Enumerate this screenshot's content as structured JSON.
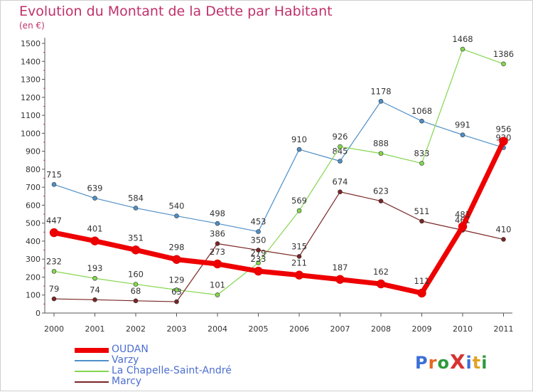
{
  "title": "Evolution du Montant de la Dette par Habitant",
  "unit": "(en €)",
  "logo": {
    "text": "ProXiti",
    "colors": [
      "#3b6fd8",
      "#e26a1f",
      "#2e9a3c",
      "#d8322f",
      "#3b6fd8",
      "#e2a21f",
      "#2e9a3c"
    ]
  },
  "chart_data": {
    "type": "line",
    "title": "Evolution du Montant de la Dette par Habitant",
    "ylabel": "(en €)",
    "xlabel": "",
    "categories": [
      "2000",
      "2001",
      "2002",
      "2003",
      "2004",
      "2005",
      "2006",
      "2007",
      "2008",
      "2009",
      "2010",
      "2011"
    ],
    "ylim": [
      0,
      1500
    ],
    "yticks": [
      0,
      100,
      200,
      300,
      400,
      500,
      600,
      700,
      800,
      900,
      1000,
      1100,
      1200,
      1300,
      1400,
      1500
    ],
    "grid": false,
    "legend_position": "bottom-left",
    "series": [
      {
        "name": "OUDAN",
        "color": "#ee0000",
        "values": [
          447,
          401,
          351,
          298,
          273,
          233,
          211,
          187,
          162,
          111,
          481,
          956
        ]
      },
      {
        "name": "Varzy",
        "color": "#4f8fc7",
        "values": [
          715,
          639,
          584,
          540,
          498,
          453,
          910,
          845,
          1178,
          1068,
          991,
          920
        ]
      },
      {
        "name": "La Chapelle-Saint-André",
        "color": "#84d64e",
        "values": [
          232,
          193,
          160,
          129,
          101,
          279,
          569,
          926,
          888,
          833,
          1468,
          1386
        ]
      },
      {
        "name": "Marcy",
        "color": "#7a2525",
        "values": [
          79,
          74,
          68,
          63,
          386,
          350,
          315,
          674,
          623,
          511,
          461,
          410
        ]
      }
    ]
  }
}
